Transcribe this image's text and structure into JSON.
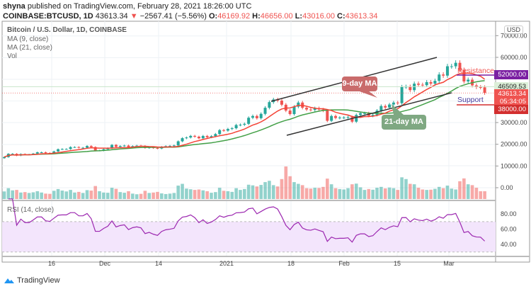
{
  "header": {
    "publisher": "shyna",
    "published": "published on TradingView.com, February 28, 2021 18:26:00 UTC",
    "symbol": "COINBASE:BTCUSD, 1D",
    "last": "43613.34",
    "arrow": "▼",
    "change": "−2567.41 (−5.56%)",
    "o_label": "O:",
    "o": "46169.92",
    "h_label": "H:",
    "h": "46656.00",
    "l_label": "L:",
    "l": "43016.00",
    "c_label": "C:",
    "c": "43613.34"
  },
  "legend": {
    "title": "Bitcoin / U.S. Dollar, 1D, COINBASE",
    "ma9": "MA (9, close)",
    "ma21": "MA (21, close)",
    "vol": "Vol",
    "rsi": "RSI (14, close)"
  },
  "annotations": {
    "ma9_box": "9-day MA",
    "ma21_box": "21-day MA",
    "resistance": "Resistance",
    "support": "Support"
  },
  "price_tags": {
    "currency": "USD",
    "resistance": "52000.00",
    "ma": "46509.53",
    "last": "43613.34",
    "countdown": "05:34:05",
    "support": "38000.00"
  },
  "colors": {
    "up": "#26a69a",
    "down": "#ef5350",
    "ma9": "#f44336",
    "ma21": "#43a047",
    "rsi": "#9c27b0",
    "resistance": "#7b1fa2",
    "support": "#d32f2f"
  },
  "footer": {
    "brand": "TradingView"
  },
  "chart_data": {
    "type": "candlestick",
    "start_date": "2020-11-04",
    "end_date": "2021-02-28",
    "price_ticks": [
      "70000.00",
      "60000.00",
      "30000.00",
      "20000.00",
      "10000.00",
      "0.00"
    ],
    "price_tick_values": [
      70000,
      60000,
      30000,
      20000,
      10000,
      0
    ],
    "rsi_ticks": [
      "80.00",
      "60.00",
      "40.00"
    ],
    "rsi_tick_values": [
      80,
      60,
      40
    ],
    "x_ticks": [
      "16",
      "Dec",
      "14",
      "2021",
      "18",
      "Feb",
      "15",
      "Mar"
    ],
    "first_open": 13600,
    "close": [
      14100,
      15600,
      15600,
      14800,
      15500,
      15300,
      15300,
      15700,
      16300,
      16300,
      16000,
      15950,
      16700,
      17700,
      17800,
      17800,
      18700,
      18700,
      18400,
      18400,
      19200,
      18700,
      17100,
      17100,
      17700,
      18200,
      19700,
      18800,
      19200,
      19400,
      18650,
      19150,
      19350,
      19200,
      18300,
      18550,
      18250,
      18050,
      18800,
      19150,
      19270,
      19450,
      21350,
      22800,
      23100,
      23850,
      23480,
      22750,
      23820,
      23240,
      23730,
      24700,
      26500,
      26270,
      27040,
      27370,
      28860,
      28990,
      29400,
      32200,
      33000,
      32000,
      34000,
      36800,
      39400,
      40600,
      40100,
      38200,
      35500,
      33900,
      37300,
      39200,
      36800,
      36000,
      35800,
      36600,
      36000,
      35500,
      30800,
      33000,
      32100,
      32300,
      32300,
      32500,
      30400,
      33500,
      34300,
      34300,
      33100,
      33500,
      35500,
      37600,
      36900,
      38300,
      39200,
      38900,
      46400,
      46500,
      44900,
      47900,
      47400,
      47200,
      48600,
      47900,
      49200,
      52100,
      51600,
      55900,
      55900,
      57500,
      54200,
      48900,
      49700,
      47100,
      46300,
      46200,
      43613
    ],
    "volume": [
      3500,
      5000,
      4000,
      4200,
      3000,
      3200,
      2800,
      3100,
      3600,
      3000,
      2500,
      2400,
      3800,
      4600,
      3900,
      3500,
      4200,
      3000,
      3300,
      2800,
      4100,
      3900,
      6000,
      3600,
      3000,
      2900,
      5200,
      4700,
      3200,
      2900,
      3600,
      2500,
      2200,
      2400,
      3800,
      2800,
      3000,
      3300,
      2600,
      2300,
      2500,
      2800,
      6200,
      7000,
      4800,
      4500,
      4200,
      4400,
      4000,
      3600,
      2900,
      3200,
      5200,
      3800,
      3600,
      3300,
      5000,
      4200,
      4600,
      6600,
      6300,
      5800,
      6500,
      7800,
      8400,
      6400,
      5800,
      9200,
      15000,
      10500,
      7800,
      7000,
      6400,
      5000,
      4800,
      5200,
      5100,
      5600,
      9400,
      6800,
      5000,
      4600,
      4400,
      5000,
      6800,
      7100,
      5400,
      4200,
      4600,
      4300,
      5200,
      5600,
      4900,
      5300,
      5000,
      4200,
      10000,
      9200,
      7000,
      6800,
      5200,
      4400,
      4200,
      4300,
      4700,
      5600,
      5000,
      6200,
      4800,
      4400,
      8200,
      9500,
      6800,
      6400,
      5200,
      3600,
      3600
    ],
    "resistance": 52000,
    "ma_line": 46509.53,
    "support": 38000,
    "rsi_period": 14,
    "ma_periods": [
      9,
      21
    ],
    "rsi_band": [
      30,
      70
    ]
  }
}
